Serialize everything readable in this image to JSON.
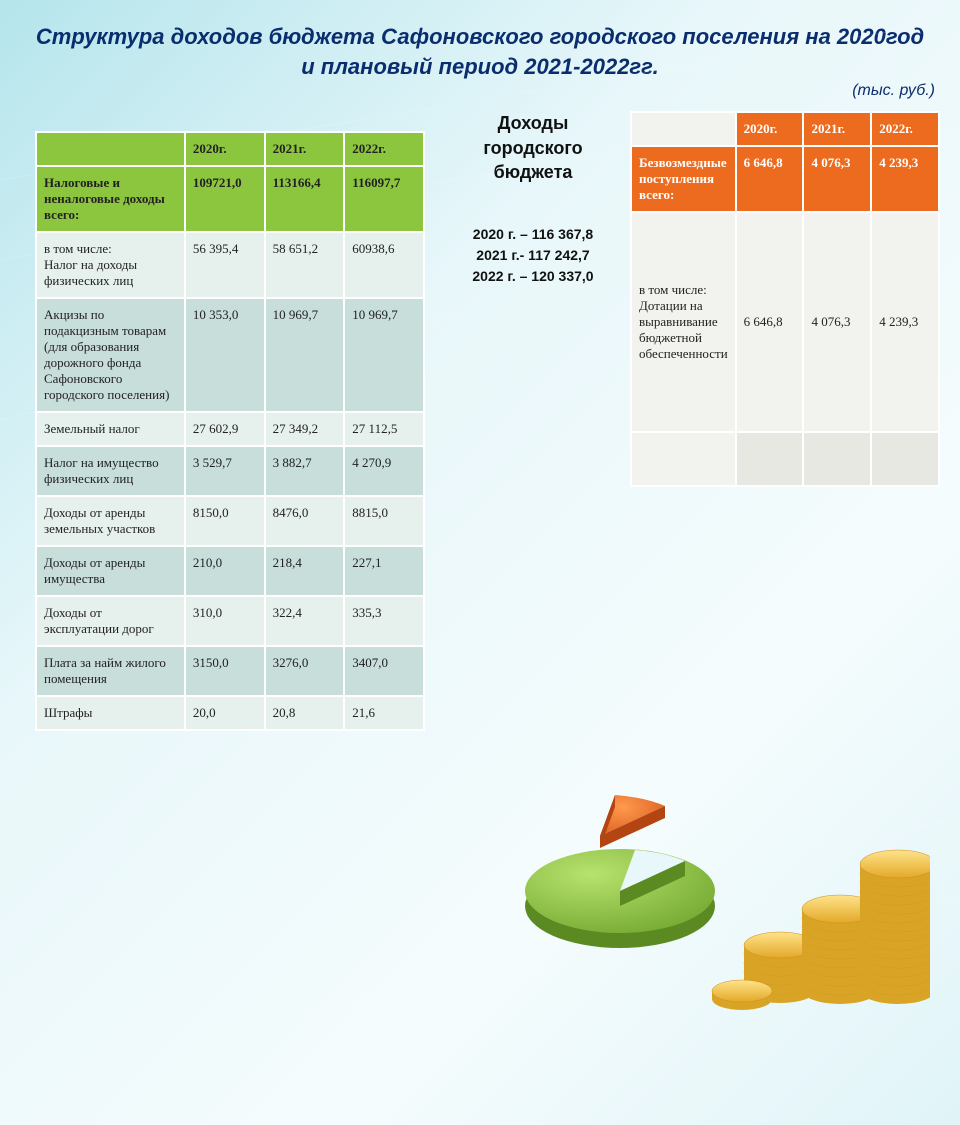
{
  "title_line1": "Структура доходов бюджета Сафоновского городского поселения на 2020год",
  "title_line2": "и плановый период 2021-2022гг.",
  "units": "(тыс. руб.)",
  "left_table": {
    "header_bg": "#8cc63f",
    "row_pale1": "#e6f1ee",
    "row_pale2": "#c7dedb",
    "columns": [
      "",
      "2020г.",
      "2021г.",
      "2022г."
    ],
    "rows": [
      {
        "style": "total",
        "cells": [
          "Налоговые и неналоговые доходы  всего:",
          "109721,0",
          "113166,4",
          "116097,7"
        ]
      },
      {
        "style": "pale1",
        "cells": [
          "в том числе:\nНалог на доходы физических лиц",
          "56 395,4",
          "58 651,2",
          "60938,6"
        ]
      },
      {
        "style": "pale2",
        "cells": [
          "Акцизы по подакцизным товарам (для образования дорожного фонда Сафоновского городского поселения)",
          "10 353,0",
          "10 969,7",
          "10 969,7"
        ]
      },
      {
        "style": "pale1",
        "cells": [
          "Земельный налог",
          "27 602,9",
          "27 349,2",
          "27 112,5"
        ]
      },
      {
        "style": "pale2",
        "cells": [
          "Налог на имущество физических лиц",
          "3 529,7",
          "3 882,7",
          "4 270,9"
        ]
      },
      {
        "style": "pale1",
        "cells": [
          "Доходы от аренды земельных участков",
          "8150,0",
          "8476,0",
          "8815,0"
        ]
      },
      {
        "style": "pale2",
        "cells": [
          "Доходы от аренды имущества",
          "210,0",
          "218,4",
          "227,1"
        ]
      },
      {
        "style": "pale1",
        "cells": [
          "Доходы от эксплуатации дорог",
          "310,0",
          "322,4",
          "335,3"
        ]
      },
      {
        "style": "pale2",
        "cells": [
          "Плата за найм жилого помещения",
          "3150,0",
          "3276,0",
          "3407,0"
        ]
      },
      {
        "style": "pale1",
        "cells": [
          "Штрафы",
          "20,0",
          "20,8",
          "21,6"
        ]
      }
    ]
  },
  "mid_block": {
    "title": "Доходы городского бюджета",
    "lines": [
      "2020 г. – 116 367,8",
      "2021 г.- 117 242,7",
      "2022 г. – 120 337,0"
    ]
  },
  "right_table": {
    "header_bg": "#ed6b1f",
    "row_pale1": "#f2f3ef",
    "row_pale2": "#e7e8e2",
    "columns": [
      "",
      "2020г.",
      "2021г.",
      "2022г."
    ],
    "rows": [
      {
        "style": "total",
        "cells": [
          "Безвозмездные поступления всего:",
          "6 646,8",
          "4 076,3",
          "4 239,3"
        ]
      },
      {
        "style": "pale1",
        "cells": [
          "в том числе:\nДотации на выравнивание бюджетной обеспеченности",
          "6 646,8",
          "4 076,3",
          "4 239,3"
        ],
        "tall": true
      },
      {
        "style": "pale2",
        "cells": [
          "",
          "",
          "",
          ""
        ],
        "empty": true
      }
    ]
  },
  "pie": {
    "green": "#8cc63f",
    "orange": "#ed6b1f",
    "green_angle_deg": 300,
    "coin_fill": "#f2c94c",
    "coin_edge": "#d9a426"
  }
}
